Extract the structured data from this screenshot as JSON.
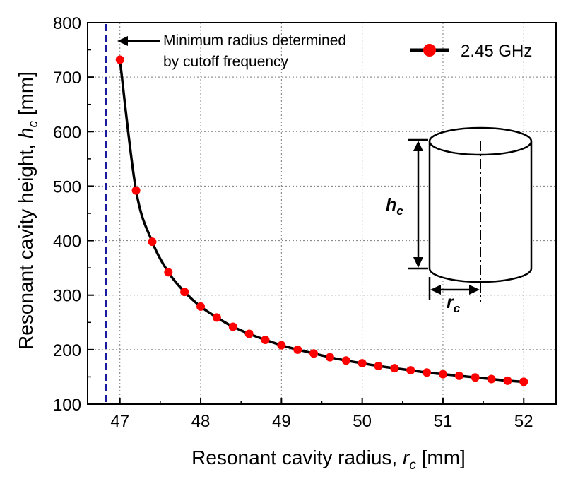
{
  "chart_data": {
    "type": "line",
    "xlabel": {
      "text": "Resonant cavity radius, ",
      "var": "r",
      "sub": "c",
      "unit": " [mm]"
    },
    "ylabel": {
      "text": "Resonant cavity height, ",
      "var": "h",
      "sub": "c",
      "unit": " [mm]"
    },
    "xlim": [
      46.6,
      52.4
    ],
    "ylim": [
      100,
      800
    ],
    "xticks": [
      47,
      48,
      49,
      50,
      51,
      52
    ],
    "yticks": [
      100,
      200,
      300,
      400,
      500,
      600,
      700,
      800
    ],
    "grid": true,
    "legend_position": "top-right",
    "series": [
      {
        "name": "2.45 GHz",
        "line_color": "#000000",
        "marker_color": "#ff0000",
        "x": [
          47.0,
          47.2,
          47.4,
          47.6,
          47.8,
          48.0,
          48.2,
          48.4,
          48.6,
          48.8,
          49.0,
          49.2,
          49.4,
          49.6,
          49.8,
          50.0,
          50.2,
          50.4,
          50.6,
          50.8,
          51.0,
          51.2,
          51.4,
          51.6,
          51.8,
          52.0
        ],
        "y": [
          732,
          492,
          398,
          342,
          306,
          279,
          259,
          242,
          229,
          218,
          208,
          200,
          193,
          186,
          180,
          175,
          170,
          166,
          162,
          158,
          155,
          152,
          149,
          146,
          143,
          141
        ]
      }
    ],
    "cutoff_line": {
      "x": 46.83,
      "color": "#1a1a9c"
    },
    "annotation": {
      "lines": [
        "Minimum radius determined",
        "by cutoff frequency"
      ],
      "x": 46.83,
      "y": 778
    },
    "inset": {
      "height_label": {
        "var": "h",
        "sub": "c"
      },
      "radius_label": {
        "var": "r",
        "sub": "c"
      }
    }
  }
}
